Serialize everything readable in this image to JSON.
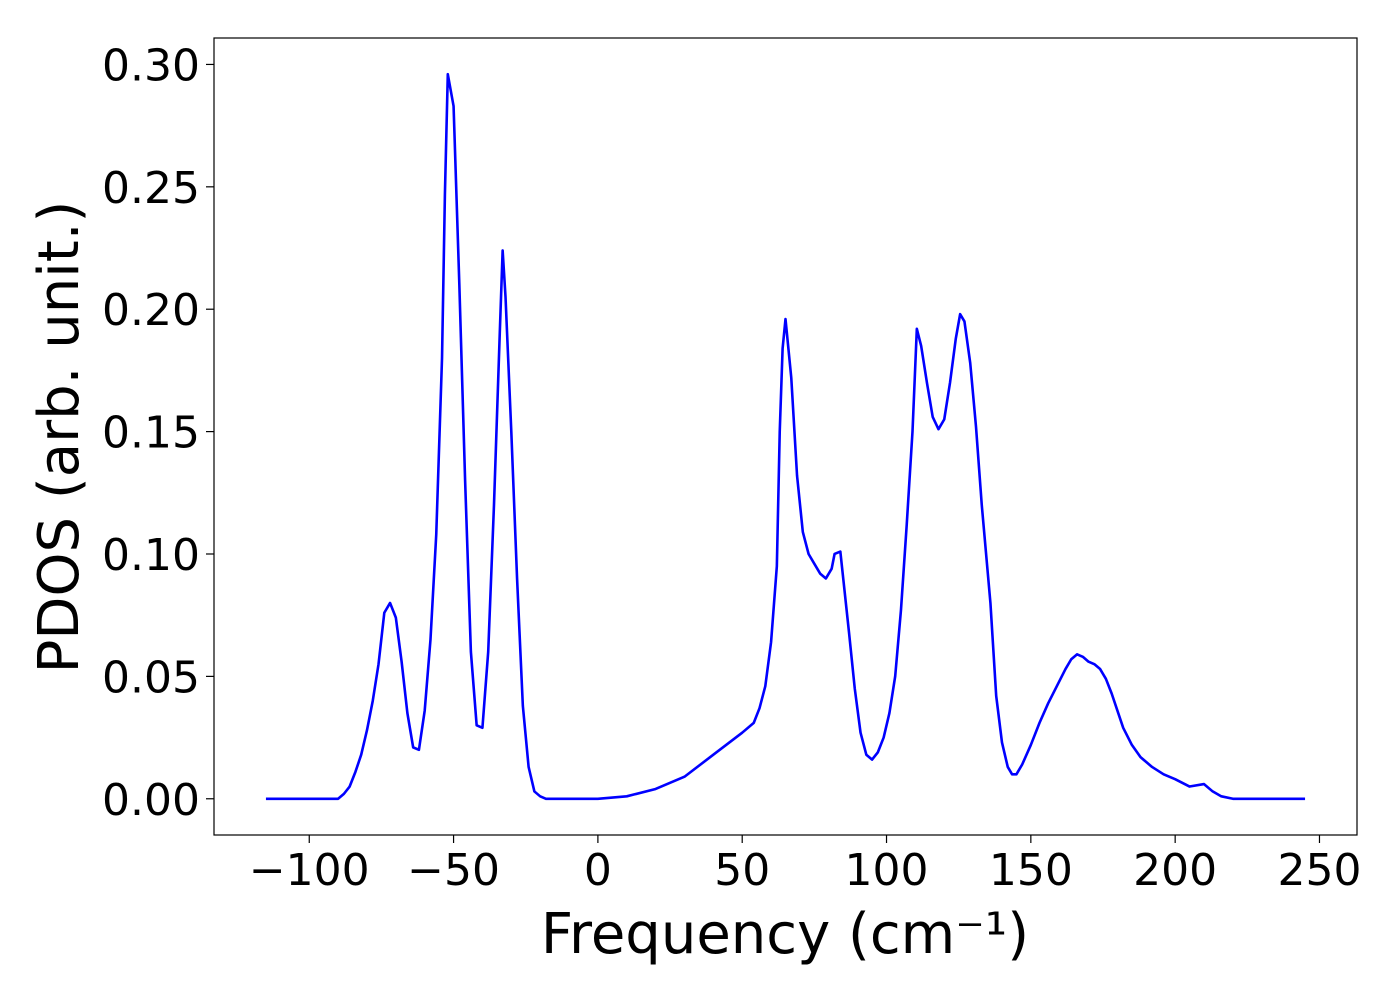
{
  "chart_data": {
    "type": "line",
    "xlabel": "Frequency (cm⁻¹)",
    "ylabel": "PDOS (arb. unit.)",
    "xlim": [
      -133,
      263
    ],
    "ylim": [
      -0.0148,
      0.3108
    ],
    "xticks": [
      {
        "value": -100,
        "label": "−100"
      },
      {
        "value": -50,
        "label": "−50"
      },
      0,
      50,
      100,
      150,
      200,
      250
    ],
    "yticks": [
      {
        "value": 0,
        "label": "0.00"
      },
      0.05,
      {
        "value": 0.1,
        "label": "0.10"
      },
      0.15,
      {
        "value": 0.2,
        "label": "0.20"
      },
      0.25,
      {
        "value": 0.3,
        "label": "0.30"
      }
    ],
    "grid": false,
    "series": [
      {
        "color": "#0000ff",
        "x": [
          -115,
          -90,
          -88,
          -86,
          -84,
          -82,
          -80,
          -78,
          -76,
          -74,
          -72,
          -70,
          -68,
          -66,
          -64,
          -62,
          -60,
          -58,
          -56,
          -54,
          -53,
          -52,
          -50,
          -48,
          -46,
          -44,
          -42,
          -40,
          -38,
          -36,
          -34,
          -33,
          -32,
          -30,
          -28,
          -26,
          -24,
          -22,
          -20,
          -18,
          0,
          10,
          20,
          30,
          40,
          50,
          54,
          56,
          58,
          60,
          62,
          63,
          64,
          65,
          67,
          69,
          71,
          73,
          75,
          77,
          79,
          81,
          82,
          84,
          85,
          87,
          89,
          91,
          93,
          95,
          97,
          99,
          101,
          103,
          105,
          107,
          109,
          110.5,
          112,
          114,
          116,
          118,
          120,
          122,
          124,
          125.5,
          127,
          129,
          131,
          133,
          136,
          138,
          140,
          142,
          143.5,
          145,
          147,
          150,
          153,
          156,
          159,
          162,
          164,
          166,
          168,
          170,
          172,
          174,
          176,
          178,
          180,
          182,
          185,
          188,
          192,
          196,
          200,
          205,
          210,
          213,
          216,
          220,
          245
        ],
        "values": [
          0,
          0,
          0.002,
          0.005,
          0.011,
          0.018,
          0.028,
          0.04,
          0.055,
          0.076,
          0.08,
          0.074,
          0.056,
          0.035,
          0.021,
          0.02,
          0.036,
          0.065,
          0.108,
          0.18,
          0.247,
          0.296,
          0.283,
          0.21,
          0.13,
          0.06,
          0.03,
          0.029,
          0.06,
          0.12,
          0.19,
          0.224,
          0.205,
          0.15,
          0.09,
          0.038,
          0.013,
          0.003,
          0.001,
          0,
          0,
          0.001,
          0.004,
          0.009,
          0.018,
          0.027,
          0.031,
          0.037,
          0.046,
          0.064,
          0.095,
          0.15,
          0.184,
          0.196,
          0.172,
          0.132,
          0.109,
          0.1,
          0.096,
          0.092,
          0.09,
          0.094,
          0.1,
          0.101,
          0.09,
          0.068,
          0.045,
          0.027,
          0.018,
          0.016,
          0.019,
          0.025,
          0.035,
          0.05,
          0.077,
          0.112,
          0.15,
          0.192,
          0.185,
          0.17,
          0.156,
          0.151,
          0.155,
          0.17,
          0.188,
          0.198,
          0.195,
          0.178,
          0.152,
          0.12,
          0.08,
          0.042,
          0.023,
          0.013,
          0.01,
          0.01,
          0.014,
          0.022,
          0.031,
          0.039,
          0.046,
          0.053,
          0.057,
          0.059,
          0.058,
          0.056,
          0.055,
          0.053,
          0.049,
          0.043,
          0.036,
          0.029,
          0.022,
          0.017,
          0.013,
          0.01,
          0.008,
          0.005,
          0.006,
          0.003,
          0.001,
          0,
          0
        ]
      }
    ]
  }
}
